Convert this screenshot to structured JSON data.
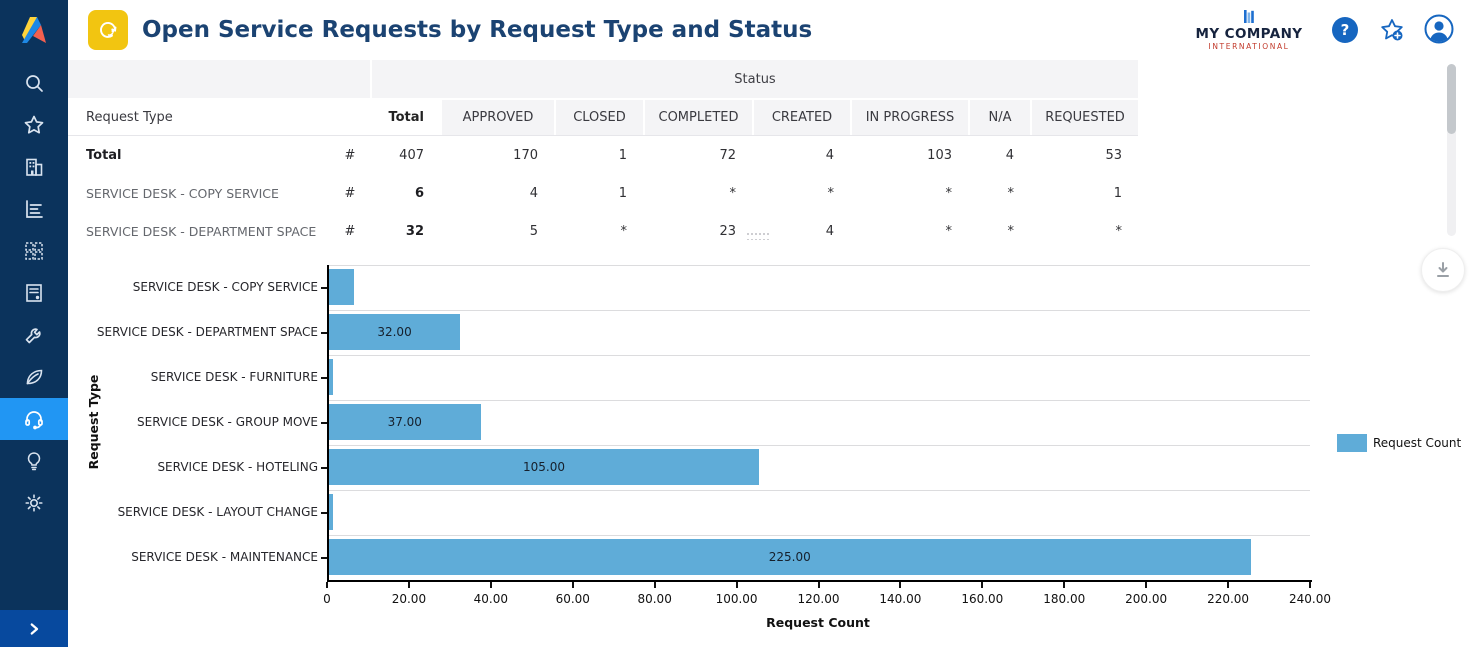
{
  "app": {
    "title": "Open Service Requests by Request Type and Status"
  },
  "header": {
    "company_name": "MY COMPANY",
    "company_sub": "INTERNATIONAL",
    "icons": [
      "help-icon",
      "favorite-star-icon",
      "profile-icon"
    ]
  },
  "sidebar": {
    "items": [
      {
        "icon": "search-icon",
        "active": false
      },
      {
        "icon": "star-icon",
        "active": false
      },
      {
        "icon": "building-icon",
        "active": false
      },
      {
        "icon": "report-chart-icon",
        "active": false
      },
      {
        "icon": "space-grid-icon",
        "active": false
      },
      {
        "icon": "document-icon",
        "active": false
      },
      {
        "icon": "wrench-icon",
        "active": false
      },
      {
        "icon": "leaf-icon",
        "active": false
      },
      {
        "icon": "headset-icon",
        "active": true
      },
      {
        "icon": "lightbulb-icon",
        "active": false
      },
      {
        "icon": "gear-icon",
        "active": false
      }
    ],
    "expand_icon": "chevron-right-icon"
  },
  "table": {
    "group_header": "Status",
    "columns": [
      "Request Type",
      "",
      "Total",
      "APPROVED",
      "CLOSED",
      "COMPLETED",
      "CREATED",
      "IN PROGRESS",
      "N/A",
      "REQUESTED"
    ],
    "rows": [
      {
        "label": "Total",
        "unit": "#",
        "total": "407",
        "values": [
          "170",
          "1",
          "72",
          "4",
          "103",
          "4",
          "53"
        ]
      },
      {
        "label": "SERVICE DESK - COPY SERVICE",
        "unit": "#",
        "total": "6",
        "values": [
          "4",
          "1",
          "*",
          "*",
          "*",
          "*",
          "1"
        ]
      },
      {
        "label": "SERVICE DESK - DEPARTMENT SPACE",
        "unit": "#",
        "total": "32",
        "values": [
          "5",
          "*",
          "23",
          "4",
          "*",
          "*",
          "*"
        ]
      }
    ]
  },
  "chart_data": {
    "type": "bar",
    "orientation": "horizontal",
    "title": "",
    "categories": [
      "SERVICE DESK - COPY SERVICE",
      "SERVICE DESK - DEPARTMENT SPACE",
      "SERVICE DESK - FURNITURE",
      "SERVICE DESK - GROUP MOVE",
      "SERVICE DESK - HOTELING",
      "SERVICE DESK - LAYOUT CHANGE",
      "SERVICE DESK - MAINTENANCE"
    ],
    "values": [
      6,
      32,
      1,
      37,
      105,
      1,
      225
    ],
    "bar_labels": [
      "",
      "32.00",
      "",
      "37.00",
      "105.00",
      "",
      "225.00"
    ],
    "series_name": "Request Count",
    "xlabel": "Request Count",
    "ylabel": "Request Type",
    "xlim": [
      0,
      240
    ],
    "xtick_labels": [
      "0",
      "20.00",
      "40.00",
      "60.00",
      "80.00",
      "100.00",
      "120.00",
      "140.00",
      "160.00",
      "180.00",
      "200.00",
      "220.00",
      "240.00"
    ],
    "grid": true,
    "legend_position": "right",
    "bar_color": "#5FACD8"
  },
  "colors": {
    "sidebar_navy": "#0B335C",
    "active_item_blue": "#2196F3",
    "expand_strip_blue": "#07499E",
    "title_navy": "#1B4372",
    "app_icon_yellow": "#F2C511",
    "company_red": "#C23A2B",
    "header_icon_blue": "#1666C0",
    "bar_blue": "#5FACD8",
    "table_header_gray": "#F4F4F6"
  }
}
